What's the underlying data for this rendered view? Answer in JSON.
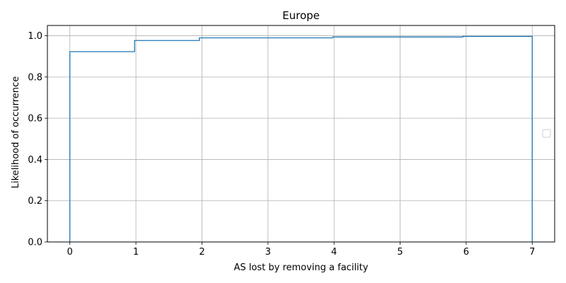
{
  "chart_data": {
    "type": "line",
    "title": "Europe",
    "xlabel": "AS lost by removing a facility",
    "ylabel": "Likelihood of occurrence",
    "xlim": [
      -0.34,
      7.34
    ],
    "ylim": [
      0,
      1.05
    ],
    "x_ticks": [
      0,
      1,
      2,
      3,
      4,
      5,
      6,
      7
    ],
    "x_tick_labels": [
      "0",
      "1",
      "2",
      "3",
      "4",
      "5",
      "6",
      "7"
    ],
    "y_ticks": [
      0,
      0.2,
      0.4,
      0.6,
      0.8,
      1.0
    ],
    "y_tick_labels": [
      "0.0",
      "0.2",
      "0.4",
      "0.6",
      "0.8",
      "1.0"
    ],
    "grid": true,
    "legend": "center-right",
    "step": "post",
    "series": [
      {
        "color": "#1f77b4",
        "points": [
          {
            "x": 0,
            "y": 0
          },
          {
            "x": 0,
            "y": 0.923
          },
          {
            "x": 0.98,
            "y": 0.923
          },
          {
            "x": 0.98,
            "y": 0.977
          },
          {
            "x": 1.96,
            "y": 0.977
          },
          {
            "x": 1.96,
            "y": 0.99
          },
          {
            "x": 3.98,
            "y": 0.99
          },
          {
            "x": 3.98,
            "y": 0.994
          },
          {
            "x": 5.95,
            "y": 0.994
          },
          {
            "x": 5.95,
            "y": 0.997
          },
          {
            "x": 7,
            "y": 0.997
          },
          {
            "x": 7,
            "y": 0
          }
        ]
      }
    ]
  }
}
